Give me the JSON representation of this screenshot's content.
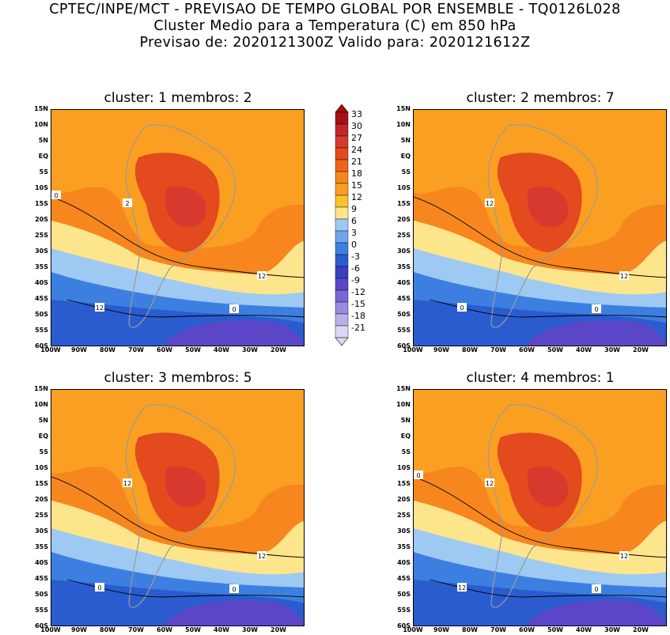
{
  "header": {
    "line1": "CPTEC/INPE/MCT - PREVISAO DE TEMPO GLOBAL POR ENSEMBLE - TQ0126L028",
    "line2": "Cluster Medio para a Temperatura (C) em 850 hPa",
    "line3": "Previsao de: 2020121300Z   Valido para: 2020121612Z"
  },
  "lat_labels": [
    "15N",
    "10N",
    "5N",
    "EQ",
    "5S",
    "10S",
    "15S",
    "20S",
    "25S",
    "30S",
    "35S",
    "40S",
    "45S",
    "50S",
    "55S",
    "60S"
  ],
  "lon_labels": [
    "100W",
    "90W",
    "80W",
    "70W",
    "60W",
    "50W",
    "40W",
    "30W",
    "20W"
  ],
  "panels": [
    {
      "title": "cluster: 1   membros: 2",
      "contour_labels": [
        "2",
        "12",
        "12",
        "0",
        "0"
      ]
    },
    {
      "title": "cluster: 2   membros: 7",
      "contour_labels": [
        "12",
        "12",
        "0",
        "0"
      ]
    },
    {
      "title": "cluster: 3   membros: 5",
      "contour_labels": [
        "12",
        "12",
        "0",
        "0"
      ]
    },
    {
      "title": "cluster: 4   membros: 1",
      "contour_labels": [
        "12",
        "12",
        "12",
        "0",
        "0"
      ]
    }
  ],
  "colorbar": {
    "levels": [
      "33",
      "30",
      "27",
      "24",
      "21",
      "18",
      "15",
      "12",
      "9",
      "6",
      "3",
      "0",
      "-3",
      "-6",
      "-9",
      "-12",
      "-15",
      "-18",
      "-21"
    ],
    "colors": [
      "#a50f15",
      "#c0262b",
      "#d63a2f",
      "#e34a1e",
      "#f0641a",
      "#f7861e",
      "#fb9f22",
      "#fcc22e",
      "#fde58c",
      "#9ec9f3",
      "#6ea6ea",
      "#3d7fe0",
      "#2a5ccf",
      "#3a3fc0",
      "#5b46c8",
      "#7b66d6",
      "#9a8ae0",
      "#bcb0ea",
      "#ddd6f5"
    ]
  },
  "colors": {
    "warm_core": "#e34a1e",
    "orange": "#f7861e",
    "light_orange": "#fb9f22",
    "yellow": "#fde58c",
    "light_blue": "#9ec9f3",
    "blue": "#3d7fe0",
    "deep_blue": "#2a5ccf",
    "purple": "#5b46c8",
    "land_outline": "#9a9a9a"
  }
}
